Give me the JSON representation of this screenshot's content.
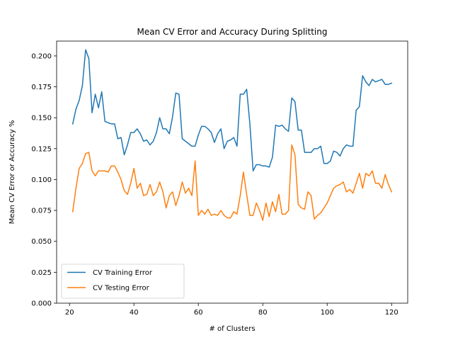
{
  "chart_data": {
    "type": "line",
    "title": "Mean CV Error and Accuracy During Splitting",
    "xlabel": "# of Clusters",
    "ylabel": "Mean CV Error or Accuracy %",
    "xlim": [
      16,
      125
    ],
    "ylim": [
      0,
      0.212
    ],
    "xticks": [
      20,
      40,
      60,
      80,
      100,
      120
    ],
    "yticks": [
      0.0,
      0.025,
      0.05,
      0.075,
      0.1,
      0.125,
      0.15,
      0.175,
      0.2
    ],
    "xtick_labels": [
      "20",
      "40",
      "60",
      "80",
      "100",
      "120"
    ],
    "ytick_labels": [
      "0.000",
      "0.025",
      "0.050",
      "0.075",
      "0.100",
      "0.125",
      "0.150",
      "0.175",
      "0.200"
    ],
    "grid": false,
    "legend_position": "lower-left",
    "x": [
      21,
      22,
      23,
      24,
      25,
      26,
      27,
      28,
      29,
      30,
      31,
      32,
      33,
      34,
      35,
      36,
      37,
      38,
      39,
      40,
      41,
      42,
      43,
      44,
      45,
      46,
      47,
      48,
      49,
      50,
      51,
      52,
      53,
      54,
      55,
      56,
      57,
      58,
      59,
      60,
      61,
      62,
      63,
      64,
      65,
      66,
      67,
      68,
      69,
      70,
      71,
      72,
      73,
      74,
      75,
      76,
      77,
      78,
      79,
      80,
      81,
      82,
      83,
      84,
      85,
      86,
      87,
      88,
      89,
      90,
      91,
      92,
      93,
      94,
      95,
      96,
      97,
      98,
      99,
      100,
      101,
      102,
      103,
      104,
      105,
      106,
      107,
      108,
      109,
      110,
      111,
      112,
      113,
      114,
      115,
      116,
      117,
      118,
      119,
      120
    ],
    "series": [
      {
        "name": "CV Training Error",
        "color": "#1f77b4",
        "values": [
          0.145,
          0.157,
          0.164,
          0.176,
          0.205,
          0.198,
          0.154,
          0.169,
          0.158,
          0.171,
          0.147,
          0.146,
          0.145,
          0.145,
          0.133,
          0.134,
          0.12,
          0.128,
          0.138,
          0.138,
          0.141,
          0.137,
          0.131,
          0.132,
          0.128,
          0.131,
          0.138,
          0.15,
          0.141,
          0.141,
          0.137,
          0.151,
          0.17,
          0.169,
          0.133,
          0.131,
          0.129,
          0.127,
          0.127,
          0.136,
          0.143,
          0.143,
          0.141,
          0.138,
          0.13,
          0.137,
          0.141,
          0.125,
          0.131,
          0.132,
          0.134,
          0.127,
          0.169,
          0.169,
          0.173,
          0.145,
          0.107,
          0.112,
          0.112,
          0.111,
          0.111,
          0.11,
          0.118,
          0.144,
          0.143,
          0.144,
          0.141,
          0.139,
          0.166,
          0.163,
          0.14,
          0.14,
          0.122,
          0.122,
          0.122,
          0.125,
          0.125,
          0.127,
          0.113,
          0.113,
          0.115,
          0.123,
          0.122,
          0.119,
          0.125,
          0.128,
          0.127,
          0.127,
          0.156,
          0.159,
          0.184,
          0.179,
          0.176,
          0.181,
          0.179,
          0.18,
          0.181,
          0.177,
          0.177,
          0.178
        ]
      },
      {
        "name": "CV Testing Error",
        "color": "#ff7f0e",
        "values": [
          0.074,
          0.093,
          0.109,
          0.113,
          0.121,
          0.122,
          0.107,
          0.103,
          0.107,
          0.107,
          0.107,
          0.106,
          0.111,
          0.111,
          0.106,
          0.1,
          0.091,
          0.088,
          0.097,
          0.109,
          0.093,
          0.097,
          0.087,
          0.088,
          0.096,
          0.087,
          0.09,
          0.098,
          0.09,
          0.077,
          0.087,
          0.09,
          0.079,
          0.087,
          0.098,
          0.089,
          0.093,
          0.087,
          0.115,
          0.071,
          0.075,
          0.072,
          0.076,
          0.071,
          0.072,
          0.071,
          0.075,
          0.071,
          0.069,
          0.069,
          0.074,
          0.072,
          0.087,
          0.106,
          0.088,
          0.071,
          0.071,
          0.081,
          0.075,
          0.067,
          0.081,
          0.07,
          0.082,
          0.074,
          0.088,
          0.072,
          0.072,
          0.075,
          0.128,
          0.12,
          0.08,
          0.077,
          0.076,
          0.09,
          0.087,
          0.068,
          0.071,
          0.073,
          0.077,
          0.081,
          0.087,
          0.093,
          0.095,
          0.096,
          0.098,
          0.09,
          0.092,
          0.089,
          0.097,
          0.105,
          0.093,
          0.105,
          0.103,
          0.107,
          0.097,
          0.097,
          0.093,
          0.104,
          0.096,
          0.09
        ]
      }
    ]
  }
}
